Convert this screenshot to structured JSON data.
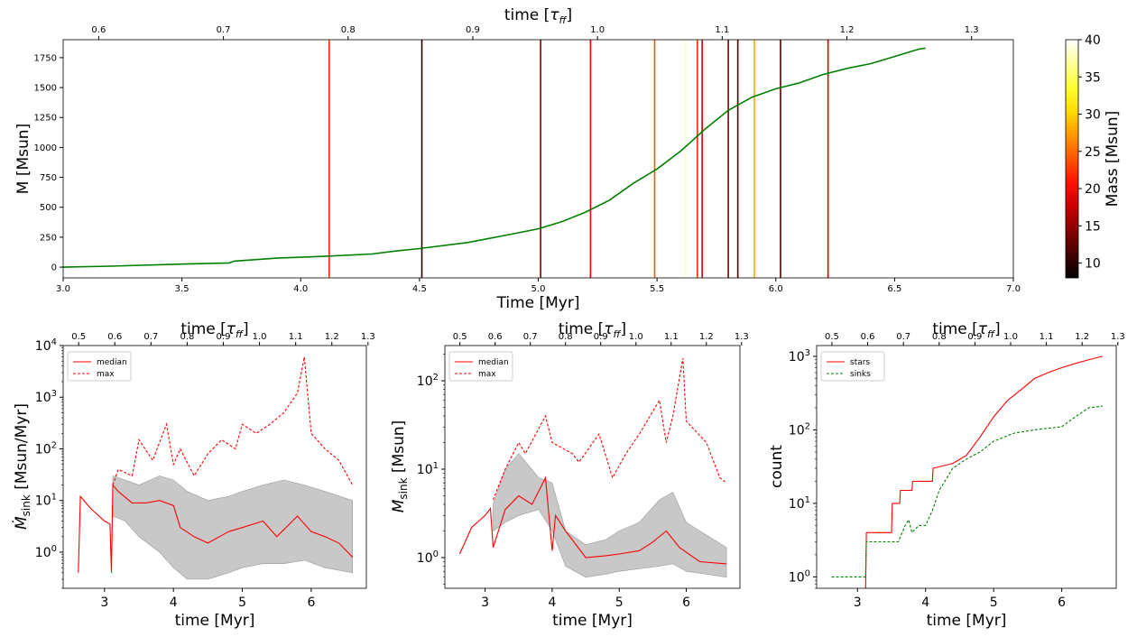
{
  "chart_data": [
    {
      "type": "line",
      "title": "",
      "xlabel": "Time [Myr]",
      "ylabel": "M [Msun]",
      "top_xlabel": "time [τ_ff]",
      "xlim": [
        3.0,
        7.0
      ],
      "ylim": [
        -90,
        1900
      ],
      "xticks": [
        3.0,
        3.5,
        4.0,
        4.5,
        5.0,
        5.5,
        6.0,
        6.5,
        7.0
      ],
      "yticks": [
        0,
        250,
        500,
        750,
        1000,
        1250,
        1500,
        1750
      ],
      "top_ticks": [
        0.6,
        0.7,
        0.8,
        0.9,
        1.0,
        1.1,
        1.2,
        1.3
      ],
      "tau_per_myr": 0.1905,
      "series": [
        {
          "name": "total mass",
          "color": "#008000",
          "x": [
            3.0,
            3.2,
            3.5,
            3.7,
            3.72,
            3.9,
            4.1,
            4.3,
            4.4,
            4.5,
            4.7,
            4.9,
            5.0,
            5.1,
            5.2,
            5.3,
            5.4,
            5.5,
            5.6,
            5.7,
            5.8,
            5.9,
            6.0,
            6.1,
            6.2,
            6.3,
            6.4,
            6.5,
            6.6,
            6.63
          ],
          "y": [
            0,
            8,
            25,
            35,
            50,
            75,
            90,
            110,
            135,
            155,
            205,
            280,
            320,
            380,
            460,
            560,
            700,
            820,
            970,
            1150,
            1310,
            1420,
            1490,
            1540,
            1610,
            1660,
            1700,
            1760,
            1820,
            1830
          ]
        }
      ],
      "events": {
        "label": "sink formation",
        "times": [
          4.12,
          4.51,
          5.01,
          5.22,
          5.49,
          5.62,
          5.67,
          5.69,
          5.8,
          5.84,
          5.91,
          6.02,
          6.22
        ],
        "masses": [
          22,
          10,
          14,
          20,
          24,
          38,
          22,
          18,
          14,
          12,
          28,
          12,
          18
        ]
      },
      "colorbar": {
        "label": "Mass [Msun]",
        "min": 8,
        "max": 40,
        "ticks": [
          10,
          15,
          20,
          25,
          30,
          35,
          40
        ]
      }
    },
    {
      "type": "line",
      "xlabel": "time [Myr]",
      "ylabel": "M_sink dot [Msun/Myr]",
      "top_xlabel": "time [τ_ff]",
      "yscale": "log",
      "xlim": [
        2.4,
        6.8
      ],
      "ylim": [
        0.2,
        10000
      ],
      "xticks": [
        3,
        4,
        5,
        6
      ],
      "yticks": [
        "10^0",
        "10^1",
        "10^2",
        "10^3",
        "10^4"
      ],
      "top_ticks": [
        0.5,
        0.6,
        0.7,
        0.8,
        0.9,
        1.0,
        1.1,
        1.2,
        1.3
      ],
      "legend": {
        "placement": "top-left",
        "entries": [
          "median",
          "max"
        ]
      },
      "series": [
        {
          "name": "median",
          "style": "solid",
          "color": "#ff0000",
          "x": [
            2.62,
            2.65,
            2.8,
            3.0,
            3.08,
            3.1,
            3.12,
            3.2,
            3.4,
            3.6,
            3.8,
            4.0,
            4.1,
            4.3,
            4.5,
            4.8,
            5.0,
            5.3,
            5.5,
            5.8,
            6.0,
            6.2,
            6.4,
            6.6
          ],
          "y": [
            0.4,
            12,
            7,
            4,
            3.5,
            0.4,
            20,
            15,
            9,
            9,
            10,
            8,
            3,
            2,
            1.5,
            2.5,
            3,
            4,
            2,
            5,
            2.5,
            2,
            1.5,
            0.8
          ]
        },
        {
          "name": "max",
          "style": "dashed",
          "color": "#ff0000",
          "x": [
            3.12,
            3.2,
            3.4,
            3.5,
            3.7,
            3.9,
            4.0,
            4.1,
            4.3,
            4.5,
            4.7,
            4.9,
            5.0,
            5.2,
            5.4,
            5.6,
            5.8,
            5.9,
            6.0,
            6.2,
            6.4,
            6.6
          ],
          "y": [
            20,
            40,
            30,
            150,
            60,
            300,
            50,
            100,
            30,
            80,
            150,
            100,
            300,
            200,
            300,
            500,
            1200,
            6000,
            200,
            100,
            60,
            20
          ]
        },
        {
          "name": "range",
          "style": "band",
          "color": "#c8c8c8",
          "x": [
            3.12,
            3.3,
            3.5,
            3.8,
            4.0,
            4.2,
            4.5,
            4.8,
            5.0,
            5.3,
            5.6,
            5.9,
            6.2,
            6.6
          ],
          "low": [
            5,
            4,
            2,
            1,
            0.5,
            0.3,
            0.3,
            0.4,
            0.5,
            0.6,
            0.6,
            0.7,
            0.5,
            0.4
          ],
          "high": [
            30,
            25,
            20,
            30,
            25,
            15,
            10,
            12,
            15,
            20,
            25,
            20,
            15,
            10
          ]
        }
      ]
    },
    {
      "type": "line",
      "xlabel": "time [Myr]",
      "ylabel": "M_sink [Msun]",
      "top_xlabel": "time [τ_ff]",
      "yscale": "log",
      "xlim": [
        2.4,
        6.8
      ],
      "ylim": [
        0.45,
        250
      ],
      "xticks": [
        3,
        4,
        5,
        6
      ],
      "yticks": [
        "10^0",
        "10^1",
        "10^2"
      ],
      "top_ticks": [
        0.5,
        0.6,
        0.7,
        0.8,
        0.9,
        1.0,
        1.1,
        1.2,
        1.3
      ],
      "legend": {
        "placement": "top-left",
        "entries": [
          "median",
          "max"
        ]
      },
      "series": [
        {
          "name": "median",
          "style": "solid",
          "color": "#ff0000",
          "x": [
            2.62,
            2.8,
            3.0,
            3.08,
            3.12,
            3.3,
            3.5,
            3.7,
            3.9,
            4.0,
            4.05,
            4.2,
            4.5,
            4.8,
            5.0,
            5.3,
            5.5,
            5.7,
            5.9,
            6.2,
            6.6
          ],
          "y": [
            1.1,
            2.2,
            3.0,
            3.6,
            1.3,
            3.5,
            5,
            4,
            8,
            1.2,
            3,
            2,
            1.0,
            1.05,
            1.1,
            1.2,
            1.5,
            2.0,
            1.3,
            0.9,
            0.85
          ]
        },
        {
          "name": "max",
          "style": "dashed",
          "color": "#ff0000",
          "x": [
            3.12,
            3.3,
            3.5,
            3.6,
            3.9,
            4.0,
            4.3,
            4.4,
            4.7,
            4.9,
            5.1,
            5.3,
            5.6,
            5.7,
            5.8,
            5.95,
            6.0,
            6.3,
            6.5,
            6.6
          ],
          "y": [
            4.5,
            10,
            20,
            15,
            40,
            20,
            15,
            12,
            25,
            8,
            15,
            25,
            60,
            20,
            40,
            180,
            35,
            20,
            8,
            7
          ]
        },
        {
          "name": "range",
          "style": "band",
          "color": "#c8c8c8",
          "x": [
            3.12,
            3.3,
            3.5,
            3.8,
            4.0,
            4.2,
            4.5,
            4.8,
            5.0,
            5.3,
            5.6,
            5.8,
            6.0,
            6.3,
            6.6
          ],
          "low": [
            2,
            2.5,
            3,
            3.5,
            2,
            0.8,
            0.6,
            0.65,
            0.7,
            0.75,
            0.8,
            0.85,
            0.7,
            0.65,
            0.6
          ],
          "high": [
            4,
            10,
            15,
            8,
            7,
            2,
            1.4,
            1.6,
            2,
            2.5,
            4.5,
            5.5,
            2.5,
            1.8,
            1.3
          ]
        }
      ]
    },
    {
      "type": "line",
      "xlabel": "time [Myr]",
      "ylabel": "count",
      "top_xlabel": "time [τ_ff]",
      "yscale": "log",
      "xlim": [
        2.4,
        6.8
      ],
      "ylim": [
        0.7,
        1400
      ],
      "xticks": [
        3,
        4,
        5,
        6
      ],
      "yticks": [
        "10^0",
        "10^1",
        "10^2",
        "10^3"
      ],
      "top_ticks": [
        0.5,
        0.6,
        0.7,
        0.8,
        0.9,
        1.0,
        1.1,
        1.2,
        1.3
      ],
      "legend": {
        "placement": "top-left",
        "entries": [
          "stars",
          "sinks"
        ]
      },
      "series": [
        {
          "name": "stars",
          "style": "solid",
          "color": "#ff0000",
          "x": [
            3.12,
            3.13,
            3.5,
            3.51,
            3.62,
            3.63,
            3.8,
            3.81,
            4.1,
            4.11,
            4.4,
            4.6,
            4.8,
            5.0,
            5.2,
            5.4,
            5.6,
            5.8,
            6.0,
            6.2,
            6.4,
            6.6
          ],
          "y": [
            0.7,
            4,
            4,
            10,
            10,
            15,
            15,
            20,
            20,
            30,
            35,
            45,
            80,
            150,
            250,
            350,
            500,
            600,
            700,
            800,
            900,
            1000
          ]
        },
        {
          "name": "sinks",
          "style": "dashed",
          "color": "#008000",
          "x": [
            2.62,
            3.12,
            3.13,
            3.6,
            3.7,
            3.75,
            3.8,
            3.9,
            4.0,
            4.1,
            4.2,
            4.4,
            4.6,
            4.8,
            5.0,
            5.3,
            5.6,
            5.8,
            6.0,
            6.2,
            6.4,
            6.6
          ],
          "y": [
            1,
            1,
            3,
            3,
            5,
            6,
            4,
            5,
            5,
            8,
            15,
            30,
            40,
            50,
            70,
            90,
            100,
            105,
            110,
            150,
            200,
            210
          ]
        }
      ]
    }
  ]
}
